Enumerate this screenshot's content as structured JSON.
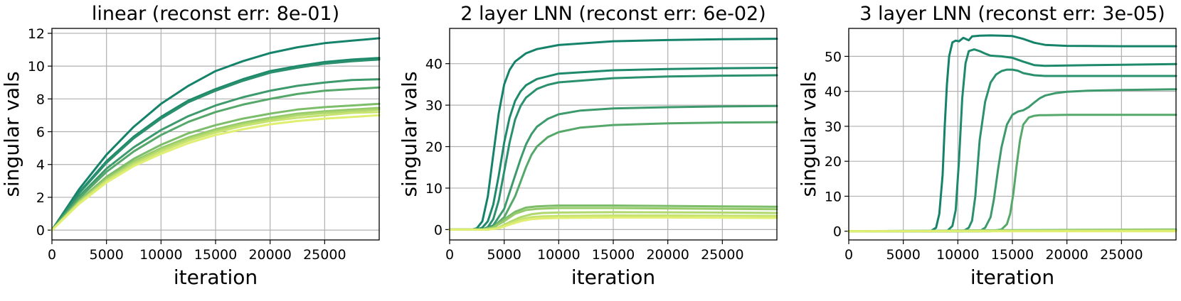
{
  "chart_data": [
    {
      "type": "line",
      "title": "linear (reconst err: 8e-01)",
      "xlabel": "iteration",
      "ylabel": "singular vals",
      "xlim": [
        0,
        30000
      ],
      "ylim": [
        -0.6,
        12.3
      ],
      "xticks": [
        0,
        5000,
        10000,
        15000,
        20000,
        25000
      ],
      "yticks": [
        0,
        2,
        4,
        6,
        8,
        10,
        12
      ],
      "grid": true,
      "series": [
        {
          "color": "#15826a",
          "x": [
            0,
            2500,
            5000,
            7500,
            10000,
            12500,
            15000,
            17500,
            20000,
            22500,
            25000,
            27500,
            30000
          ],
          "values": [
            0,
            2.5,
            4.6,
            6.3,
            7.7,
            8.8,
            9.7,
            10.3,
            10.8,
            11.15,
            11.4,
            11.55,
            11.7
          ]
        },
        {
          "color": "#1e8a6b",
          "x": [
            0,
            2500,
            5000,
            7500,
            10000,
            12500,
            15000,
            17500,
            20000,
            22500,
            25000,
            27500,
            30000
          ],
          "values": [
            0,
            2.3,
            4.2,
            5.7,
            6.9,
            7.9,
            8.6,
            9.2,
            9.7,
            10.0,
            10.25,
            10.4,
            10.5
          ]
        },
        {
          "color": "#2a906d",
          "x": [
            0,
            2500,
            5000,
            7500,
            10000,
            12500,
            15000,
            17500,
            20000,
            22500,
            25000,
            27500,
            30000
          ],
          "values": [
            0,
            2.25,
            4.1,
            5.6,
            6.8,
            7.8,
            8.5,
            9.1,
            9.6,
            9.9,
            10.15,
            10.3,
            10.4
          ]
        },
        {
          "color": "#3d9a6c",
          "x": [
            0,
            2500,
            5000,
            7500,
            10000,
            12500,
            15000,
            17500,
            20000,
            22500,
            25000,
            27500,
            30000
          ],
          "values": [
            0,
            2.05,
            3.75,
            5.05,
            6.1,
            6.95,
            7.6,
            8.1,
            8.5,
            8.8,
            9.0,
            9.15,
            9.2
          ]
        },
        {
          "color": "#55a86a",
          "x": [
            0,
            2500,
            5000,
            7500,
            10000,
            12500,
            15000,
            17500,
            20000,
            22500,
            25000,
            27500,
            30000
          ],
          "values": [
            0,
            1.95,
            3.55,
            4.8,
            5.8,
            6.6,
            7.2,
            7.65,
            8.0,
            8.3,
            8.5,
            8.6,
            8.7
          ]
        },
        {
          "color": "#7cbd6a",
          "x": [
            0,
            2500,
            5000,
            7500,
            10000,
            12500,
            15000,
            17500,
            20000,
            22500,
            25000,
            27500,
            30000
          ],
          "values": [
            0,
            1.8,
            3.25,
            4.35,
            5.2,
            5.9,
            6.4,
            6.8,
            7.1,
            7.35,
            7.5,
            7.6,
            7.7
          ]
        },
        {
          "color": "#96cb6c",
          "x": [
            0,
            2500,
            5000,
            7500,
            10000,
            12500,
            15000,
            17500,
            20000,
            22500,
            25000,
            27500,
            30000
          ],
          "values": [
            0,
            1.75,
            3.15,
            4.2,
            5.0,
            5.65,
            6.15,
            6.55,
            6.85,
            7.1,
            7.25,
            7.35,
            7.45
          ]
        },
        {
          "color": "#b0d86e",
          "x": [
            0,
            2500,
            5000,
            7500,
            10000,
            12500,
            15000,
            17500,
            20000,
            22500,
            25000,
            27500,
            30000
          ],
          "values": [
            0,
            1.7,
            3.05,
            4.1,
            4.9,
            5.55,
            6.05,
            6.45,
            6.75,
            7.0,
            7.15,
            7.25,
            7.35
          ]
        },
        {
          "color": "#c8e470",
          "x": [
            0,
            2500,
            5000,
            7500,
            10000,
            12500,
            15000,
            17500,
            20000,
            22500,
            25000,
            27500,
            30000
          ],
          "values": [
            0,
            1.65,
            3.0,
            4.0,
            4.8,
            5.45,
            5.95,
            6.35,
            6.65,
            6.85,
            7.0,
            7.15,
            7.2
          ]
        },
        {
          "color": "#e0ef72",
          "x": [
            0,
            2500,
            5000,
            7500,
            10000,
            12500,
            15000,
            17500,
            20000,
            22500,
            25000,
            27500,
            30000
          ],
          "values": [
            0,
            1.6,
            2.9,
            3.9,
            4.65,
            5.3,
            5.8,
            6.15,
            6.45,
            6.65,
            6.8,
            6.9,
            7.0
          ]
        }
      ]
    },
    {
      "type": "line",
      "title": "2 layer LNN (reconst err: 6e-02)",
      "xlabel": "iteration",
      "ylabel": "singular vals",
      "xlim": [
        0,
        30000
      ],
      "ylim": [
        -2.5,
        48.5
      ],
      "xticks": [
        0,
        5000,
        10000,
        15000,
        20000,
        25000
      ],
      "yticks": [
        0,
        10,
        20,
        30,
        40
      ],
      "grid": true,
      "series": [
        {
          "color": "#15826a",
          "x": [
            0,
            2000,
            2500,
            3000,
            3500,
            4000,
            4500,
            5000,
            5500,
            6000,
            7000,
            8000,
            10000,
            15000,
            20000,
            25000,
            30000
          ],
          "values": [
            0,
            0,
            0.3,
            2,
            8,
            18,
            28,
            35,
            38.5,
            40.5,
            42.5,
            43.5,
            44.5,
            45.4,
            45.7,
            45.9,
            46
          ]
        },
        {
          "color": "#1e8a6b",
          "x": [
            0,
            2500,
            3000,
            3500,
            4000,
            4500,
            5000,
            5500,
            6000,
            6500,
            7000,
            8000,
            10000,
            15000,
            20000,
            25000,
            30000
          ],
          "values": [
            0,
            0,
            0.5,
            2,
            6,
            13,
            21,
            27,
            31,
            33.3,
            34.8,
            36.3,
            37.6,
            38.4,
            38.7,
            38.9,
            39
          ]
        },
        {
          "color": "#2a906d",
          "x": [
            0,
            3000,
            3500,
            4000,
            4500,
            5000,
            5500,
            6000,
            6500,
            7000,
            8000,
            9000,
            10000,
            15000,
            20000,
            25000,
            30000
          ],
          "values": [
            0,
            0,
            0.6,
            2.5,
            7,
            14,
            21,
            26.5,
            29.8,
            31.8,
            33.9,
            34.9,
            35.5,
            36.5,
            36.9,
            37.1,
            37.2
          ]
        },
        {
          "color": "#3d9a6c",
          "x": [
            0,
            3000,
            4000,
            5000,
            5500,
            6000,
            6500,
            7000,
            7500,
            8000,
            9000,
            10000,
            12000,
            15000,
            20000,
            25000,
            30000
          ],
          "values": [
            0,
            0,
            1,
            5,
            9,
            13,
            17,
            20.5,
            23,
            24.8,
            26.7,
            27.8,
            28.7,
            29.2,
            29.5,
            29.7,
            29.8
          ]
        },
        {
          "color": "#55a86a",
          "x": [
            0,
            3000,
            4000,
            5000,
            6000,
            6500,
            7000,
            7500,
            8000,
            9000,
            10000,
            12000,
            15000,
            20000,
            25000,
            30000
          ],
          "values": [
            0,
            0,
            0.6,
            3,
            8,
            11.5,
            15,
            18,
            20,
            22.3,
            23.5,
            24.6,
            25.2,
            25.6,
            25.8,
            25.9
          ]
        },
        {
          "color": "#7cbd6a",
          "x": [
            0,
            3000,
            4000,
            5000,
            6000,
            7000,
            8000,
            10000,
            15000,
            20000,
            25000,
            30000
          ],
          "values": [
            0,
            0,
            0.6,
            2.5,
            4.3,
            5.3,
            5.6,
            5.8,
            5.8,
            5.7,
            5.6,
            5.5
          ]
        },
        {
          "color": "#96cb6c",
          "x": [
            0,
            3000,
            4000,
            5000,
            6000,
            7000,
            8000,
            10000,
            15000,
            20000,
            25000,
            30000
          ],
          "values": [
            0,
            0,
            0.5,
            2,
            3.8,
            4.7,
            5.0,
            5.2,
            5.2,
            5.1,
            5.0,
            4.9
          ]
        },
        {
          "color": "#b0d86e",
          "x": [
            0,
            3500,
            4500,
            5500,
            6500,
            7500,
            8500,
            10000,
            15000,
            20000,
            25000,
            30000
          ],
          "values": [
            0,
            0,
            0.5,
            1.8,
            3.0,
            3.7,
            4.0,
            4.1,
            4.2,
            4.15,
            4.1,
            4.0
          ]
        },
        {
          "color": "#c8e470",
          "x": [
            0,
            3500,
            4500,
            5500,
            6500,
            7500,
            8500,
            10000,
            15000,
            20000,
            25000,
            30000
          ],
          "values": [
            0,
            0,
            0.4,
            1.5,
            2.5,
            3.0,
            3.2,
            3.3,
            3.4,
            3.4,
            3.35,
            3.3
          ]
        },
        {
          "color": "#e0ef72",
          "x": [
            0,
            3500,
            4500,
            5500,
            6500,
            7500,
            8500,
            10000,
            15000,
            20000,
            25000,
            30000
          ],
          "values": [
            0,
            0,
            0.3,
            1.2,
            2.0,
            2.5,
            2.7,
            2.8,
            2.9,
            2.9,
            2.85,
            2.8
          ]
        }
      ]
    },
    {
      "type": "line",
      "title": "3 layer LNN (reconst err: 3e-05)",
      "xlabel": "iteration",
      "ylabel": "singular vals",
      "xlim": [
        0,
        30000
      ],
      "ylim": [
        -2.5,
        58
      ],
      "xticks": [
        0,
        5000,
        10000,
        15000,
        20000,
        25000
      ],
      "yticks": [
        0,
        10,
        20,
        30,
        40,
        50
      ],
      "grid": true,
      "series": [
        {
          "color": "#15826a",
          "x": [
            0,
            7500,
            8000,
            8300,
            8600,
            8800,
            9000,
            9200,
            9500,
            9800,
            10100,
            10500,
            11000,
            11300,
            12000,
            13000,
            14000,
            15000,
            16000,
            17000,
            18000,
            20000,
            25000,
            30000
          ],
          "values": [
            0,
            0,
            1,
            5,
            16,
            30,
            42,
            50,
            54,
            54.5,
            54.3,
            55.3,
            54.6,
            55.7,
            55.9,
            56,
            55.9,
            55.8,
            55.0,
            53.9,
            53.3,
            53.0,
            52.9,
            52.9
          ]
        },
        {
          "color": "#1e8a6b",
          "x": [
            0,
            9000,
            9500,
            9800,
            10100,
            10400,
            10700,
            11000,
            11500,
            12000,
            12500,
            13000,
            14000,
            15000,
            16000,
            17000,
            18000,
            20000,
            25000,
            30000
          ],
          "values": [
            0,
            0,
            1.5,
            6,
            20,
            38,
            48,
            51.5,
            52,
            51.5,
            50.8,
            50.2,
            50.0,
            49.6,
            48.5,
            47.5,
            47.3,
            47.4,
            47.6,
            47.8
          ]
        },
        {
          "color": "#2a906d",
          "x": [
            0,
            10500,
            11000,
            11300,
            11600,
            12000,
            12500,
            13000,
            13500,
            14000,
            14500,
            15000,
            15500,
            16000,
            17000,
            18000,
            20000,
            25000,
            30000
          ],
          "values": [
            0,
            0,
            1,
            3,
            10,
            26,
            37,
            42.5,
            44.8,
            45.8,
            46.2,
            46.2,
            45.9,
            45.2,
            44.6,
            44.4,
            44.4,
            44.4,
            44.4
          ]
        },
        {
          "color": "#3d9a6c",
          "x": [
            0,
            12000,
            12500,
            13000,
            13300,
            13700,
            14000,
            14500,
            15000,
            15500,
            16000,
            16500,
            17000,
            17500,
            18000,
            19000,
            20000,
            22000,
            25000,
            30000
          ],
          "values": [
            0,
            0,
            1,
            4,
            9,
            18,
            24,
            30.5,
            33.3,
            34.2,
            34.6,
            35.5,
            36.8,
            38.0,
            38.8,
            39.5,
            39.9,
            40.2,
            40.4,
            40.6
          ]
        },
        {
          "color": "#55a86a",
          "x": [
            0,
            13000,
            14000,
            14500,
            14800,
            15100,
            15400,
            15700,
            16000,
            16500,
            17000,
            17500,
            18000,
            20000,
            25000,
            30000
          ],
          "values": [
            0,
            0,
            0.5,
            2,
            5,
            11,
            19,
            26,
            30.5,
            32.5,
            33,
            33.2,
            33.2,
            33.3,
            33.3,
            33.3
          ]
        },
        {
          "color": "#7cbd6a",
          "x": [
            0,
            15000,
            30000
          ],
          "values": [
            0,
            0.3,
            0.5
          ]
        },
        {
          "color": "#96cb6c",
          "x": [
            0,
            15000,
            30000
          ],
          "values": [
            0,
            0.2,
            0.35
          ]
        },
        {
          "color": "#b0d86e",
          "x": [
            0,
            15000,
            30000
          ],
          "values": [
            0,
            0.1,
            0.25
          ]
        },
        {
          "color": "#c8e470",
          "x": [
            0,
            15000,
            30000
          ],
          "values": [
            0,
            0.05,
            0.12
          ]
        },
        {
          "color": "#e0ef72",
          "x": [
            0,
            30000
          ],
          "values": [
            0,
            0
          ]
        }
      ]
    }
  ]
}
